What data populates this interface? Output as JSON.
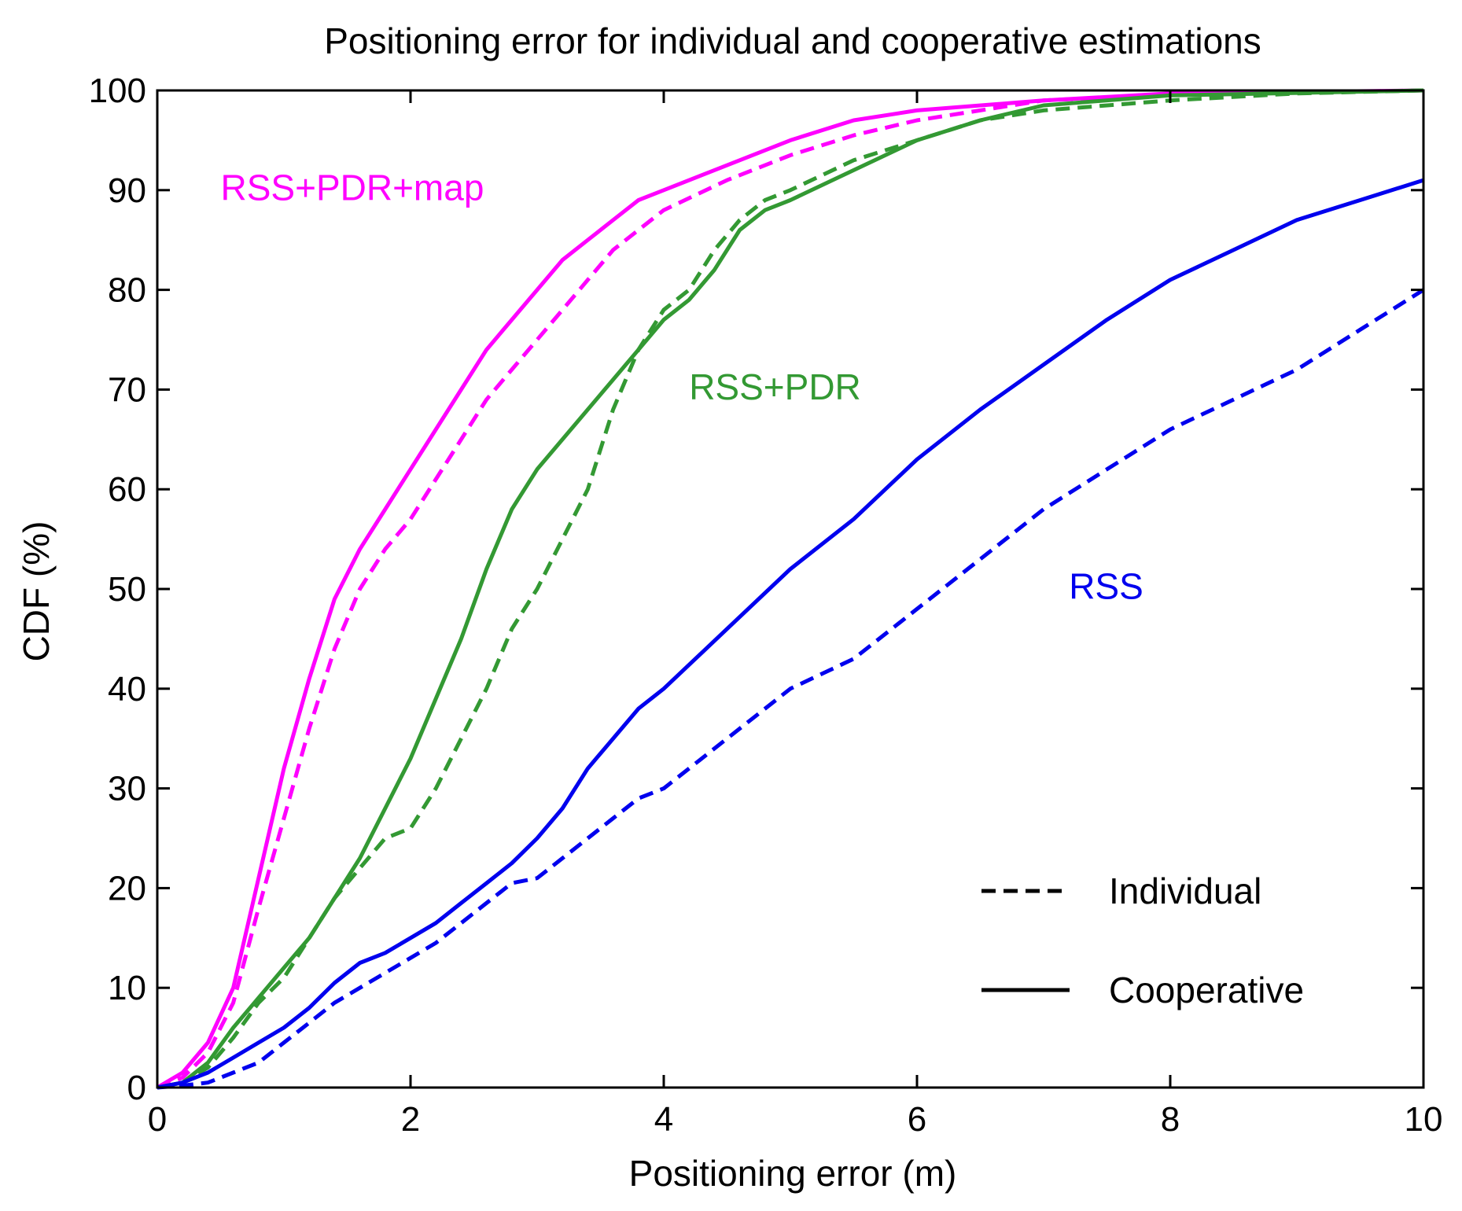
{
  "chart_data": {
    "type": "line",
    "title": "Positioning error for individual and cooperative estimations",
    "xlabel": "Positioning error (m)",
    "ylabel": "CDF (%)",
    "xlim": [
      0,
      10
    ],
    "ylim": [
      0,
      100
    ],
    "xticks": [
      0,
      2,
      4,
      6,
      8,
      10
    ],
    "yticks": [
      0,
      10,
      20,
      30,
      40,
      50,
      60,
      70,
      80,
      90,
      100
    ],
    "grid": false,
    "legend": {
      "position": "bottom-right",
      "entries": [
        {
          "label": "Individual",
          "style": "dashed"
        },
        {
          "label": "Cooperative",
          "style": "solid"
        }
      ]
    },
    "annotations": [
      {
        "text": "RSS+PDR+map",
        "color": "#ff00ff",
        "x": 0.5,
        "y": 89
      },
      {
        "text": "RSS+PDR",
        "color": "#339933",
        "x": 4.2,
        "y": 69
      },
      {
        "text": "RSS",
        "color": "#0000ee",
        "x": 7.2,
        "y": 49
      }
    ],
    "series": [
      {
        "name": "RSS+PDR+map Cooperative",
        "group": "RSS+PDR+map",
        "style": "solid",
        "color": "#ff00ff",
        "x": [
          0,
          0.2,
          0.4,
          0.6,
          0.8,
          1.0,
          1.2,
          1.4,
          1.6,
          1.8,
          2.0,
          2.2,
          2.4,
          2.6,
          2.8,
          3.0,
          3.2,
          3.4,
          3.6,
          3.8,
          4.0,
          4.4,
          5.0,
          5.5,
          6.0,
          7.0,
          8.0,
          10.0
        ],
        "y": [
          0,
          1.5,
          4.5,
          10,
          21,
          32,
          41,
          49,
          54,
          58,
          62,
          66,
          70,
          74,
          77,
          80,
          83,
          85,
          87,
          89,
          90,
          92,
          95,
          97,
          98,
          99,
          99.7,
          100
        ]
      },
      {
        "name": "RSS+PDR+map Individual",
        "group": "RSS+PDR+map",
        "style": "dashed",
        "color": "#ff00ff",
        "x": [
          0,
          0.2,
          0.4,
          0.6,
          0.8,
          1.0,
          1.2,
          1.4,
          1.6,
          1.8,
          2.0,
          2.2,
          2.4,
          2.6,
          2.8,
          3.0,
          3.2,
          3.4,
          3.6,
          3.8,
          4.0,
          4.5,
          5.0,
          5.5,
          6.0,
          7.0,
          8.0,
          10.0
        ],
        "y": [
          0,
          1.0,
          3.5,
          8.5,
          18,
          27,
          36,
          44,
          50,
          54,
          57,
          61,
          65,
          69,
          72,
          75,
          78,
          81,
          84,
          86,
          88,
          91,
          93.5,
          95.5,
          97,
          99,
          99.6,
          100
        ]
      },
      {
        "name": "RSS+PDR Cooperative",
        "group": "RSS+PDR",
        "style": "solid",
        "color": "#339933",
        "x": [
          0,
          0.2,
          0.4,
          0.6,
          0.8,
          1.0,
          1.2,
          1.4,
          1.6,
          1.8,
          2.0,
          2.2,
          2.4,
          2.6,
          2.8,
          3.0,
          3.2,
          3.4,
          3.6,
          3.8,
          4.0,
          4.2,
          4.4,
          4.6,
          4.8,
          5.0,
          5.5,
          6.0,
          6.5,
          7.0,
          8.0,
          10.0
        ],
        "y": [
          0,
          0.5,
          2.5,
          6,
          9,
          12,
          15,
          19,
          23,
          28,
          33,
          39,
          45,
          52,
          58,
          62,
          65,
          68,
          71,
          74,
          77,
          79,
          82,
          86,
          88,
          89,
          92,
          95,
          97,
          98.5,
          99.5,
          100
        ]
      },
      {
        "name": "RSS+PDR Individual",
        "group": "RSS+PDR",
        "style": "dashed",
        "color": "#339933",
        "x": [
          0,
          0.2,
          0.4,
          0.6,
          0.8,
          1.0,
          1.2,
          1.4,
          1.6,
          1.8,
          2.0,
          2.2,
          2.4,
          2.6,
          2.8,
          3.0,
          3.2,
          3.4,
          3.5,
          3.6,
          3.8,
          4.0,
          4.2,
          4.4,
          4.6,
          4.8,
          5.0,
          5.5,
          6.0,
          6.5,
          7.0,
          8.0,
          9.0,
          10.0
        ],
        "y": [
          0,
          0.5,
          2,
          5,
          8.5,
          11,
          15,
          19,
          22,
          25,
          26,
          30,
          35,
          40,
          46,
          50,
          55,
          60,
          64,
          68,
          74,
          78,
          80,
          84,
          87,
          89,
          90,
          93,
          95,
          97,
          98,
          99,
          99.7,
          100
        ]
      },
      {
        "name": "RSS Cooperative",
        "group": "RSS",
        "style": "solid",
        "color": "#0000ee",
        "x": [
          0,
          0.2,
          0.4,
          0.6,
          0.8,
          1.0,
          1.2,
          1.4,
          1.6,
          1.8,
          2.0,
          2.2,
          2.4,
          2.6,
          2.8,
          3.0,
          3.2,
          3.4,
          3.6,
          3.8,
          4.0,
          4.5,
          5.0,
          5.5,
          6.0,
          6.5,
          7.0,
          7.5,
          8.0,
          8.5,
          9.0,
          9.5,
          10.0
        ],
        "y": [
          0,
          0.5,
          1.5,
          3,
          4.5,
          6,
          8,
          10.5,
          12.5,
          13.5,
          15,
          16.5,
          18.5,
          20.5,
          22.5,
          25,
          28,
          32,
          35,
          38,
          40,
          46,
          52,
          57,
          63,
          68,
          72.5,
          77,
          81,
          84,
          87,
          89,
          91
        ]
      },
      {
        "name": "RSS Individual",
        "group": "RSS",
        "style": "dashed",
        "color": "#0000ee",
        "x": [
          0,
          0.2,
          0.4,
          0.6,
          0.8,
          1.0,
          1.2,
          1.4,
          1.6,
          1.8,
          2.0,
          2.2,
          2.4,
          2.6,
          2.8,
          3.0,
          3.2,
          3.4,
          3.6,
          3.8,
          4.0,
          4.5,
          5.0,
          5.5,
          6.0,
          6.5,
          7.0,
          7.5,
          8.0,
          8.5,
          9.0,
          9.5,
          10.0
        ],
        "y": [
          0,
          0.2,
          0.5,
          1.5,
          2.5,
          4.5,
          6.5,
          8.5,
          10,
          11.5,
          13,
          14.5,
          16.5,
          18.5,
          20.5,
          21,
          23,
          25,
          27,
          29,
          30,
          35,
          40,
          43,
          48,
          53,
          58,
          62,
          66,
          69,
          72,
          76,
          80
        ]
      }
    ]
  }
}
